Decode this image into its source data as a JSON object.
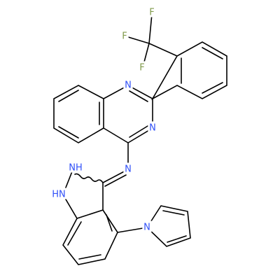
{
  "atoms": [
    {
      "label": "F"
    },
    {
      "label": "F"
    },
    {
      "label": "F"
    },
    {
      "label": "N"
    },
    {
      "label": "N"
    },
    {
      "label": "N"
    },
    {
      "label": "NH"
    },
    {
      "label": "HN"
    },
    {
      "label": "N"
    }
  ]
}
